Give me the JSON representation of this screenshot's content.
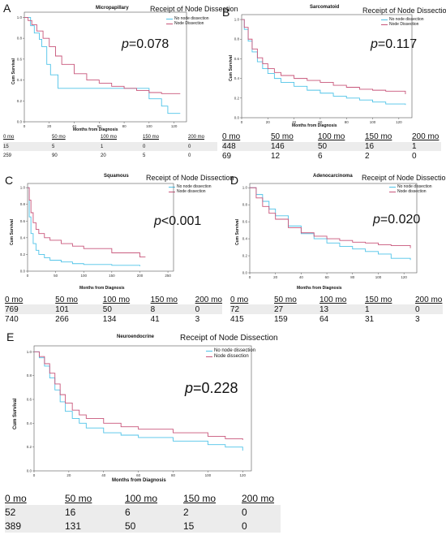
{
  "colors": {
    "no_node": "#4fc3e8",
    "node": "#c8557a"
  },
  "chart_data": [
    {
      "id": "A",
      "type": "line",
      "panel_label": "A",
      "title": "Micropapillary",
      "legend_title": "Receipt of Node Dissection",
      "legend": [
        "No node dissection",
        "Node Dissection"
      ],
      "p_value": "=0.078",
      "xlabel": "Months from Diagnosis",
      "ylabel": "Cum Survival",
      "xlim": [
        0,
        130
      ],
      "ylim": [
        0,
        1.05
      ],
      "xticks": [
        0,
        20,
        40,
        60,
        80,
        100,
        120
      ],
      "yticks": [
        0.0,
        0.2,
        0.4,
        0.6,
        0.8,
        1.0
      ],
      "series": [
        {
          "name": "No node dissection",
          "color": "#4fc3e8",
          "x": [
            0,
            5,
            8,
            10,
            12,
            14,
            17,
            18,
            21,
            24,
            27,
            34,
            70,
            80,
            100,
            110,
            115,
            125
          ],
          "y": [
            1.0,
            0.92,
            0.85,
            0.85,
            0.79,
            0.72,
            0.72,
            0.55,
            0.45,
            0.45,
            0.32,
            0.32,
            0.32,
            0.32,
            0.22,
            0.15,
            0.08,
            0.08
          ]
        },
        {
          "name": "Node Dissection",
          "color": "#c8557a",
          "x": [
            0,
            3,
            6,
            10,
            15,
            20,
            25,
            30,
            40,
            50,
            60,
            70,
            80,
            90,
            100,
            110,
            125
          ],
          "y": [
            1.0,
            0.97,
            0.93,
            0.87,
            0.8,
            0.72,
            0.63,
            0.55,
            0.46,
            0.4,
            0.37,
            0.34,
            0.32,
            0.3,
            0.28,
            0.27,
            0.27
          ]
        }
      ],
      "risk_table": {
        "headers": [
          "0 mo",
          "50 mo",
          "100 mo",
          "150 mo",
          "200 mo"
        ],
        "rows": [
          [
            "15",
            "5",
            "1",
            "0",
            "0"
          ],
          [
            "259",
            "90",
            "20",
            "5",
            "0"
          ]
        ]
      }
    },
    {
      "id": "B",
      "type": "line",
      "panel_label": "B",
      "title": "Sarcomatoid",
      "legend_title": "Receipt of Node Dissection",
      "legend": [
        "No node dissection",
        "Node Dissection"
      ],
      "p_value": "=0.117",
      "xlabel": "Months from Diagnosis",
      "ylabel": "Cum Survival",
      "xlim": [
        0,
        130
      ],
      "ylim": [
        0,
        1.05
      ],
      "xticks": [
        0,
        20,
        40,
        60,
        80,
        100,
        120
      ],
      "yticks": [
        0.0,
        0.2,
        0.4,
        0.6,
        0.8,
        1.0
      ],
      "series": [
        {
          "name": "No node dissection",
          "color": "#4fc3e8",
          "x": [
            0,
            2,
            5,
            8,
            12,
            16,
            20,
            25,
            30,
            40,
            50,
            60,
            70,
            80,
            90,
            100,
            110,
            125
          ],
          "y": [
            1.0,
            0.9,
            0.78,
            0.67,
            0.57,
            0.5,
            0.45,
            0.4,
            0.36,
            0.32,
            0.28,
            0.25,
            0.22,
            0.2,
            0.18,
            0.16,
            0.14,
            0.13
          ]
        },
        {
          "name": "Node Dissection",
          "color": "#c8557a",
          "x": [
            0,
            2,
            5,
            8,
            12,
            16,
            20,
            25,
            30,
            40,
            50,
            60,
            70,
            80,
            90,
            100,
            110,
            125
          ],
          "y": [
            1.0,
            0.92,
            0.8,
            0.7,
            0.61,
            0.55,
            0.5,
            0.46,
            0.43,
            0.4,
            0.38,
            0.36,
            0.33,
            0.31,
            0.29,
            0.28,
            0.27,
            0.24
          ]
        }
      ],
      "risk_table": {
        "headers": [
          "0 mo",
          "50 mo",
          "100 mo",
          "150 mo",
          "200 mo"
        ],
        "rows": [
          [
            "448",
            "146",
            "50",
            "16",
            "1"
          ],
          [
            "69",
            "12",
            "6",
            "2",
            "0"
          ]
        ]
      }
    },
    {
      "id": "C",
      "type": "line",
      "panel_label": "C",
      "title": "Squamous",
      "legend_title": "Receipt of Node Dissection",
      "legend": [
        "No node dissection",
        "Node dissection"
      ],
      "p_value": "<0.001",
      "xlabel": "Months from Diagnosis",
      "ylabel": "Cum Survival",
      "xlim": [
        0,
        260
      ],
      "ylim": [
        0,
        1.05
      ],
      "xticks": [
        0,
        50,
        100,
        150,
        200,
        250
      ],
      "yticks": [
        0.0,
        0.2,
        0.4,
        0.6,
        0.8,
        1.0
      ],
      "series": [
        {
          "name": "No node dissection",
          "color": "#4fc3e8",
          "x": [
            0,
            3,
            6,
            10,
            15,
            20,
            30,
            40,
            60,
            80,
            100,
            150,
            200
          ],
          "y": [
            1.0,
            0.65,
            0.45,
            0.33,
            0.25,
            0.2,
            0.16,
            0.13,
            0.11,
            0.09,
            0.08,
            0.07,
            0.06
          ]
        },
        {
          "name": "Node dissection",
          "color": "#c8557a",
          "x": [
            0,
            3,
            6,
            10,
            15,
            20,
            30,
            40,
            60,
            80,
            100,
            150,
            200,
            210
          ],
          "y": [
            1.0,
            0.85,
            0.7,
            0.58,
            0.5,
            0.45,
            0.4,
            0.37,
            0.33,
            0.3,
            0.27,
            0.22,
            0.17,
            0.17
          ]
        }
      ],
      "risk_table": {
        "headers": [
          "0 mo",
          "50 mo",
          "100 mo",
          "150 mo",
          "200 mo"
        ],
        "rows": [
          [
            "769",
            "101",
            "50",
            "8",
            "0"
          ],
          [
            "740",
            "266",
            "134",
            "41",
            "3"
          ]
        ]
      }
    },
    {
      "id": "D",
      "type": "line",
      "panel_label": "D",
      "title": "Adenocarcinoma",
      "legend_title": "Receipt of Node Dissection",
      "legend": [
        "No node dissection",
        "Node dissection"
      ],
      "p_value": "=0.020",
      "xlabel": "Months from Diagnosis",
      "ylabel": "Cum Survival",
      "xlim": [
        0,
        130
      ],
      "ylim": [
        0,
        1.05
      ],
      "xticks": [
        0,
        20,
        40,
        60,
        80,
        100,
        120
      ],
      "yticks": [
        0.0,
        0.2,
        0.4,
        0.6,
        0.8,
        1.0
      ],
      "series": [
        {
          "name": "No node dissection",
          "color": "#4fc3e8",
          "x": [
            0,
            5,
            10,
            15,
            20,
            30,
            40,
            50,
            60,
            70,
            80,
            90,
            100,
            110,
            125
          ],
          "y": [
            1.0,
            0.92,
            0.84,
            0.75,
            0.67,
            0.55,
            0.46,
            0.4,
            0.35,
            0.31,
            0.28,
            0.25,
            0.22,
            0.17,
            0.15
          ]
        },
        {
          "name": "Node dissection",
          "color": "#c8557a",
          "x": [
            0,
            5,
            10,
            15,
            20,
            30,
            40,
            50,
            60,
            70,
            80,
            90,
            100,
            110,
            125
          ],
          "y": [
            1.0,
            0.88,
            0.78,
            0.7,
            0.63,
            0.53,
            0.47,
            0.43,
            0.4,
            0.38,
            0.36,
            0.35,
            0.33,
            0.32,
            0.29
          ]
        }
      ],
      "risk_table": {
        "headers": [
          "0 mo",
          "50 mo",
          "100 mo",
          "150 mo",
          "200 mo"
        ],
        "rows": [
          [
            "72",
            "27",
            "13",
            "1",
            "0"
          ],
          [
            "415",
            "159",
            "64",
            "31",
            "3"
          ]
        ]
      }
    },
    {
      "id": "E",
      "type": "line",
      "panel_label": "E",
      "title": "Neuroendocrine",
      "legend_title": "Receipt of Node Dissection",
      "legend": [
        "No node dissection",
        "Node dissection"
      ],
      "p_value": "=0.228",
      "xlabel": "Months from Diagnosis",
      "ylabel": "Cum Survival",
      "xlim": [
        0,
        125
      ],
      "ylim": [
        0,
        1.05
      ],
      "xticks": [
        0,
        20,
        40,
        60,
        80,
        100,
        120
      ],
      "yticks": [
        0.0,
        0.2,
        0.4,
        0.6,
        0.8,
        1.0
      ],
      "series": [
        {
          "name": "No node dissection",
          "color": "#4fc3e8",
          "x": [
            0,
            3,
            6,
            9,
            12,
            15,
            18,
            22,
            26,
            30,
            40,
            50,
            60,
            80,
            100,
            110,
            120
          ],
          "y": [
            1.0,
            0.95,
            0.88,
            0.78,
            0.68,
            0.58,
            0.5,
            0.44,
            0.4,
            0.36,
            0.32,
            0.3,
            0.28,
            0.25,
            0.22,
            0.2,
            0.17
          ]
        },
        {
          "name": "Node dissection",
          "color": "#c8557a",
          "x": [
            0,
            3,
            6,
            9,
            12,
            15,
            18,
            22,
            26,
            30,
            40,
            50,
            60,
            80,
            100,
            110,
            120
          ],
          "y": [
            1.0,
            0.96,
            0.9,
            0.82,
            0.73,
            0.64,
            0.57,
            0.51,
            0.47,
            0.44,
            0.4,
            0.37,
            0.35,
            0.32,
            0.29,
            0.27,
            0.26
          ]
        }
      ],
      "risk_table": {
        "headers": [
          "0 mo",
          "50 mo",
          "100 mo",
          "150 mo",
          "200 mo"
        ],
        "rows": [
          [
            "52",
            "16",
            "6",
            "2",
            "0"
          ],
          [
            "389",
            "131",
            "50",
            "15",
            "0"
          ]
        ]
      }
    }
  ]
}
